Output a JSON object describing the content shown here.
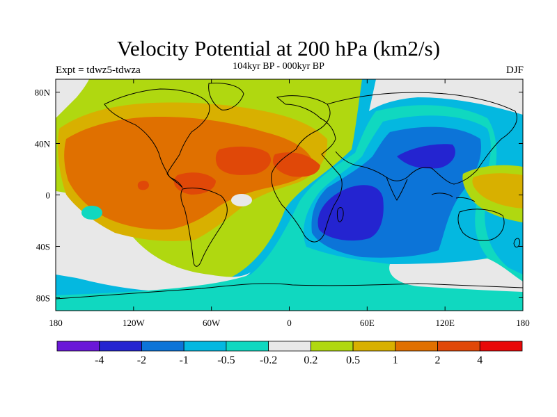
{
  "title": "Velocity Potential at 200 hPa (km2/s)",
  "subtitle": "104kyr BP - 000kyr BP",
  "left_label": "Expt = tdwz5-tdwza",
  "right_label": "DJF",
  "map": {
    "projection": "cylindrical-equidistant",
    "lon_range": [
      -180,
      180
    ],
    "lat_range": [
      -90,
      90
    ],
    "x_ticks": [
      {
        "value": -180,
        "label": "180"
      },
      {
        "value": -120,
        "label": "120W"
      },
      {
        "value": -60,
        "label": "60W"
      },
      {
        "value": 0,
        "label": "0"
      },
      {
        "value": 60,
        "label": "60E"
      },
      {
        "value": 120,
        "label": "120E"
      },
      {
        "value": 180,
        "label": "180"
      }
    ],
    "y_ticks": [
      {
        "value": 80,
        "label": "80N"
      },
      {
        "value": 40,
        "label": "40N"
      },
      {
        "value": 0,
        "label": "0"
      },
      {
        "value": -40,
        "label": "40S"
      },
      {
        "value": -80,
        "label": "80S"
      }
    ]
  },
  "colorbar": {
    "colors": [
      "#6a18d8",
      "#2424d0",
      "#0c74d8",
      "#04b8e0",
      "#10d8c0",
      "#e8e8e8",
      "#b0d810",
      "#d8b000",
      "#e07000",
      "#e04808",
      "#e80808"
    ],
    "labels": [
      "-4",
      "-2",
      "-1",
      "-0.5",
      "-0.2",
      "0.2",
      "0.5",
      "1",
      "2",
      "4"
    ]
  },
  "colors": {
    "land_outline": "#000000",
    "frame": "#000000"
  }
}
